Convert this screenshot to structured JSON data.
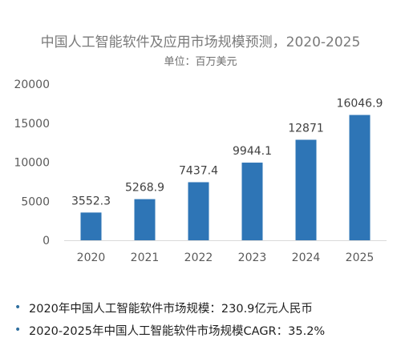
{
  "chart_data": {
    "type": "bar",
    "title": "中国人工智能软件及应用市场规模预测，2020-2025",
    "subtitle": "单位：百万美元",
    "categories": [
      "2020",
      "2021",
      "2022",
      "2023",
      "2024",
      "2025"
    ],
    "values": [
      3552.3,
      5268.9,
      7437.4,
      9944.1,
      12871,
      16046.9
    ],
    "data_labels": [
      "3552.3",
      "5268.9",
      "7437.4",
      "9944.1",
      "12871",
      "16046.9"
    ],
    "ylim": [
      0,
      20000
    ],
    "yticks": [
      "0",
      "5000",
      "10000",
      "15000",
      "20000"
    ],
    "grid": false,
    "bar_color": "#2e75b6"
  },
  "notes": [
    "2020年中国人工智能软件市场规模：230.9亿元人民币",
    "2020-2025年中国人工智能软件市场规模CAGR：35.2%"
  ],
  "bullet_glyph": "•"
}
